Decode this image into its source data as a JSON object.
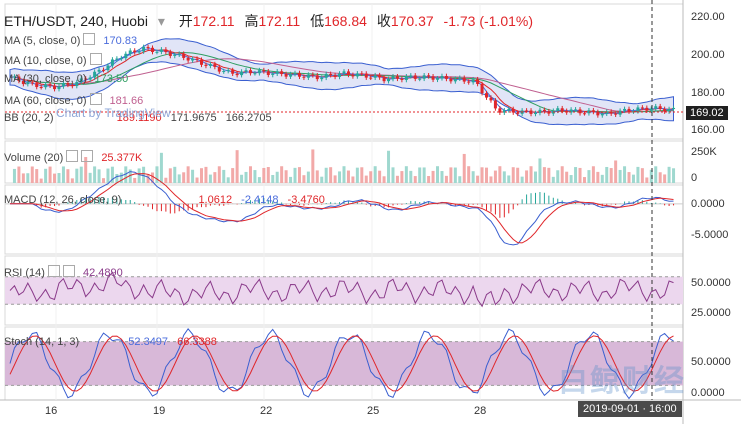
{
  "header": {
    "symbol": "ETH/USDT, 240, Huobi",
    "open_label": "开",
    "open": "172.11",
    "high_label": "高",
    "high": "172.11",
    "low_label": "低",
    "low": "168.84",
    "close_label": "收",
    "close": "170.37",
    "change": "-1.73 (-1.01%)"
  },
  "indicators": {
    "ma5": {
      "label": "MA (5, close, 0)",
      "value": "170.83",
      "color": "#4a6cdc"
    },
    "ma10": {
      "label": "MA (10, close, 0)",
      "value": "",
      "color": "#e0262a"
    },
    "ma30": {
      "label": "MA (30, close, 0)",
      "value": "173.50",
      "color": "#2e9e62"
    },
    "ma60": {
      "label": "MA (60, close, 0)",
      "value": "181.66",
      "color": "#c06090"
    },
    "bb": {
      "label": "BB (20, 2)",
      "upper": "189.1190",
      "mid": "171.9675",
      "lower": "166.2705"
    },
    "watermark": "Chart by TradingView",
    "volume": {
      "label": "Volume (20)",
      "value": "25.377K"
    },
    "macd": {
      "label": "MACD (12, 26, close, 9)",
      "hist": "1.0612",
      "macd": "-2.4148",
      "signal": "-3.4760"
    },
    "rsi": {
      "label": "RSI (14)",
      "value": "42.4890"
    },
    "stoch": {
      "label": "Stoch (14, 1, 3)",
      "k": "52.3497",
      "d": "66.3388"
    }
  },
  "axes": {
    "price_ticks": [
      "220.00",
      "200.00",
      "180.00",
      "160.00"
    ],
    "price_tag": "169.02",
    "volume_ticks": [
      "250K",
      "0"
    ],
    "macd_ticks": [
      "0.0000",
      "-5.0000"
    ],
    "rsi_ticks": [
      "50.0000",
      "25.0000"
    ],
    "stoch_ticks": [
      "50.0000",
      "0.0000"
    ],
    "x_ticks": [
      "16",
      "19",
      "22",
      "25",
      "28"
    ],
    "time_tag": "2019-09-01 · 16:00"
  },
  "watermark_text": "白鲸财经",
  "chart_data": {
    "type": "candlestick",
    "title": "ETH/USDT, 240, Huobi",
    "x_range": [
      "2019-09-15",
      "2019-09-01"
    ],
    "price_range": [
      155,
      225
    ],
    "ohlc_last": {
      "open": 172.11,
      "high": 172.11,
      "low": 168.84,
      "close": 170.37
    },
    "price_series_sampled": [
      187,
      183,
      182,
      184,
      190,
      198,
      202,
      200,
      197,
      193,
      189,
      190,
      189,
      188,
      187,
      189,
      188,
      186,
      187,
      187,
      186,
      185,
      170,
      169,
      169,
      170,
      169,
      168,
      170,
      171,
      170
    ],
    "volume_ylim": [
      0,
      300000
    ],
    "macd_ylim": [
      -8,
      3
    ],
    "rsi_ylim": [
      0,
      100
    ],
    "rsi_bands": [
      70,
      30
    ],
    "stoch_ylim": [
      0,
      100
    ],
    "stoch_bands": [
      80,
      20
    ],
    "colors": {
      "up": "#26a69a",
      "down": "#e0262a",
      "band_fill": "#c8d0f0",
      "rsi_fill": "#ecd7ee",
      "stoch_fill": "#d8b8d8"
    }
  }
}
